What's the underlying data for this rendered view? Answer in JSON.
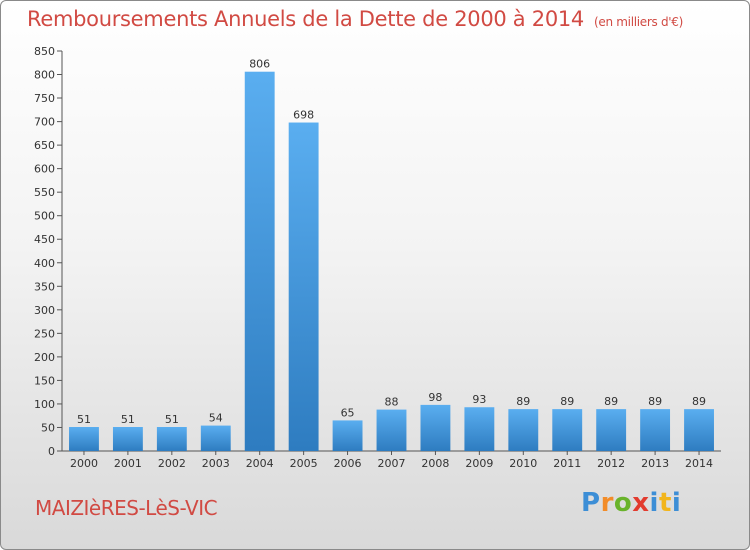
{
  "title": "Remboursements Annuels de la Dette de 2000 à 2014",
  "subtitle": "(en milliers d'€)",
  "commune": "MAIZIèRES-LèS-VIC",
  "logo": {
    "letters": [
      "P",
      "r",
      "o",
      "x",
      "i",
      "t",
      "i"
    ],
    "colors": [
      "#3c8ed6",
      "#f28c28",
      "#69b32b",
      "#e23b2e",
      "#3c8ed6",
      "#f2b51c",
      "#3c8ed6"
    ]
  },
  "colors": {
    "bar": "#4a9fe0",
    "text": "#d14a43"
  },
  "chart_data": {
    "type": "bar",
    "title": "Remboursements Annuels de la Dette de 2000 à 2014",
    "subtitle": "(en milliers d'€)",
    "categories": [
      "2000",
      "2001",
      "2002",
      "2003",
      "2004",
      "2005",
      "2006",
      "2007",
      "2008",
      "2009",
      "2010",
      "2011",
      "2012",
      "2013",
      "2014"
    ],
    "values": [
      51,
      51,
      51,
      54,
      806,
      698,
      65,
      88,
      98,
      93,
      89,
      89,
      89,
      89,
      89
    ],
    "yticks": [
      0,
      50,
      100,
      150,
      200,
      250,
      300,
      350,
      400,
      450,
      500,
      550,
      600,
      650,
      700,
      750,
      800,
      850
    ],
    "ylim": [
      0,
      850
    ],
    "grid": false,
    "xlabel": "",
    "ylabel": ""
  }
}
